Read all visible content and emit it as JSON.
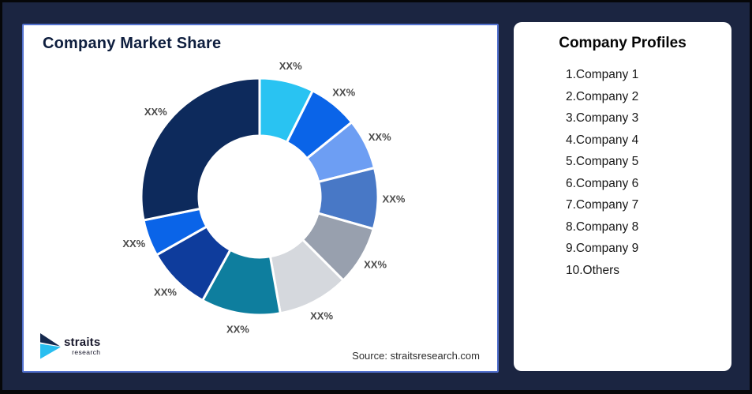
{
  "chart": {
    "title": "Company Market Share",
    "source": "Source: straitsresearch.com"
  },
  "chart_data": {
    "type": "pie",
    "subtype": "donut",
    "title": "Company Market Share",
    "value_labels_shown": "XX% (placeholder on every slice)",
    "start_angle_deg": 0,
    "direction": "clockwise",
    "inner_radius_ratio": 0.51,
    "segments": [
      {
        "name": "Company 1",
        "label": "XX%",
        "value": 7.4,
        "color": "#29C3F2"
      },
      {
        "name": "Company 2",
        "label": "XX%",
        "value": 6.8,
        "color": "#0A64E8"
      },
      {
        "name": "Company 3",
        "label": "XX%",
        "value": 6.9,
        "color": "#6D9EF3"
      },
      {
        "name": "Company 4",
        "label": "XX%",
        "value": 8.3,
        "color": "#4878C6"
      },
      {
        "name": "Company 5",
        "label": "XX%",
        "value": 8.1,
        "color": "#98A0AE"
      },
      {
        "name": "Company 6",
        "label": "XX%",
        "value": 9.7,
        "color": "#D5D8DD"
      },
      {
        "name": "Company 7",
        "label": "XX%",
        "value": 10.8,
        "color": "#0E7E9E"
      },
      {
        "name": "Company 8",
        "label": "XX%",
        "value": 8.8,
        "color": "#0E3C9C"
      },
      {
        "name": "Company 9",
        "label": "XX%",
        "value": 5.0,
        "color": "#0A64E8"
      },
      {
        "name": "Others",
        "label": "XX%",
        "value": 28.2,
        "color": "#0D2A5C"
      }
    ]
  },
  "profiles": {
    "title": "Company Profiles",
    "items": [
      "1.Company 1",
      "2.Company 2",
      "3.Company 3",
      "4.Company 4",
      "5.Company 5",
      "6.Company 6",
      "7.Company 7",
      "8.Company 8",
      "9.Company 9",
      "10.Others"
    ]
  },
  "logo": {
    "name": "straits",
    "sub": "research"
  },
  "colors": {
    "background": "#1B2541",
    "chart_card_border": "#5271CE",
    "slice_label": "#4B4B4B",
    "logo_navy": "#15294E",
    "logo_cyan": "#29BEF0"
  }
}
